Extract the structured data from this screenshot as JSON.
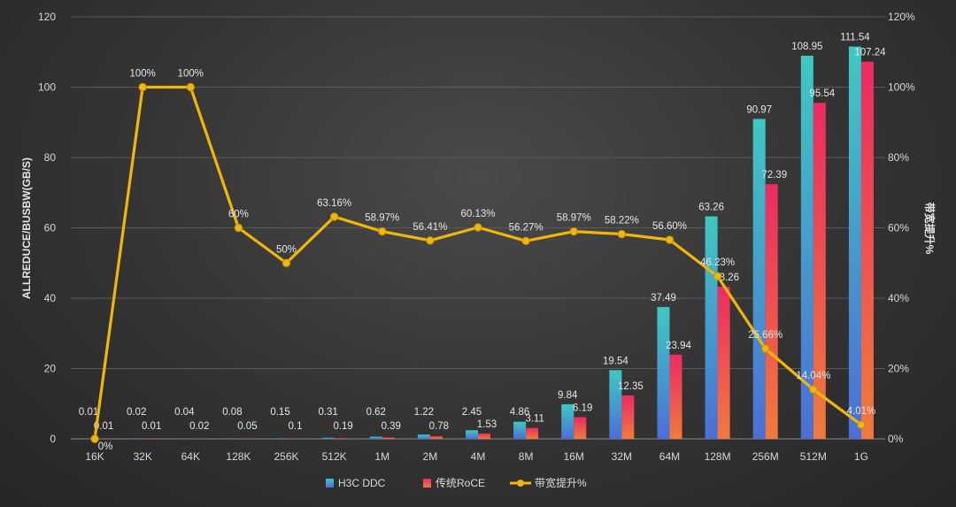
{
  "chart_data": {
    "type": "bar",
    "categories": [
      "16K",
      "32K",
      "64K",
      "128K",
      "256K",
      "512K",
      "1M",
      "2M",
      "4M",
      "8M",
      "16M",
      "32M",
      "64M",
      "128M",
      "256M",
      "512M",
      "1G"
    ],
    "series": [
      {
        "name": "H3C DDC",
        "type": "bar",
        "axis": "left",
        "values": [
          0.01,
          0.02,
          0.04,
          0.08,
          0.15,
          0.31,
          0.62,
          1.22,
          2.45,
          4.86,
          9.84,
          19.54,
          37.49,
          63.26,
          90.97,
          108.95,
          111.54
        ],
        "labels": [
          "0.01",
          "0.02",
          "0.04",
          "0.08",
          "0.15",
          "0.31",
          "0.62",
          "1.22",
          "2.45",
          "4.86",
          "9.84",
          "19.54",
          "37.49",
          "63.26",
          "90.97",
          "108.95",
          "111.54"
        ],
        "color_top": "#3ec9c2",
        "color_bottom": "#4a6fd8"
      },
      {
        "name": "传统RoCE",
        "type": "bar",
        "axis": "left",
        "values": [
          0.01,
          0.01,
          0.02,
          0.05,
          0.1,
          0.19,
          0.39,
          0.78,
          1.53,
          3.11,
          6.19,
          12.35,
          23.94,
          43.26,
          72.39,
          95.54,
          107.24
        ],
        "labels": [
          "0.01",
          "0.01",
          "0.02",
          "0.05",
          "0.1",
          "0.19",
          "0.39",
          "0.78",
          "1.53",
          "3.11",
          "6.19",
          "12.35",
          "23.94",
          "43.26",
          "72.39",
          "95.54",
          "107.24"
        ],
        "color_top": "#ee2a62",
        "color_bottom": "#f07a3c"
      },
      {
        "name": "带宽提升%",
        "type": "line",
        "axis": "right",
        "values": [
          0,
          100,
          100,
          60,
          50,
          63.16,
          58.97,
          56.41,
          60.13,
          56.27,
          58.97,
          58.22,
          56.6,
          46.23,
          25.66,
          14.04,
          4.01
        ],
        "labels": [
          "0%",
          "100%",
          "100%",
          "60%",
          "50%",
          "63.16%",
          "58.97%",
          "56.41%",
          "60.13%",
          "56.27%",
          "58.97%",
          "58.22%",
          "56.60%",
          "46.23%",
          "25.66%",
          "14.04%",
          "4.01%"
        ],
        "color": "#f2b705"
      }
    ],
    "ylabel": "ALLREDUCE/BUSBW(GB/S)",
    "y2label": "带宽提升%",
    "ylim": [
      0,
      120
    ],
    "y_ticks": [
      "0",
      "20",
      "40",
      "60",
      "80",
      "100",
      "120"
    ],
    "y2lim": [
      0,
      120
    ],
    "y2_ticks": [
      "0%",
      "20%",
      "40%",
      "60%",
      "80%",
      "100%",
      "120%"
    ],
    "grid": true,
    "legend_position": "bottom-center"
  }
}
